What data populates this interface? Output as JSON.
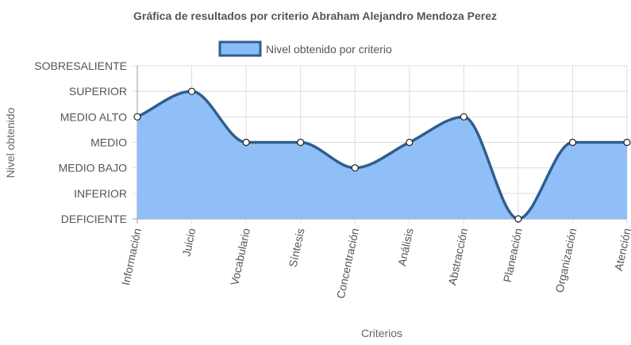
{
  "chart_data": {
    "type": "area",
    "title": "Gráfica de resultados por criterio Abraham Alejandro Mendoza Perez",
    "xlabel": "Criterios",
    "ylabel": "Nivel obtenido",
    "y_levels": [
      "DEFICIENTE",
      "INFERIOR",
      "MEDIO BAJO",
      "MEDIO",
      "MEDIO ALTO",
      "SUPERIOR",
      "SOBRESALIENTE"
    ],
    "categories": [
      "Información",
      "Juicio",
      "Vocabulario",
      "Síntesis",
      "Concentración",
      "Análisis",
      "Abstracción",
      "Planeación",
      "Organización",
      "Atención"
    ],
    "series": [
      {
        "name": "Nivel obtenido por criterio",
        "values": [
          4,
          5,
          3,
          3,
          2,
          3,
          4,
          0,
          3,
          3
        ],
        "fill": "#8abcf7",
        "stroke": "#2f5e8e"
      }
    ],
    "ylim": [
      0,
      6
    ],
    "grid": true,
    "legend": "top-center"
  }
}
